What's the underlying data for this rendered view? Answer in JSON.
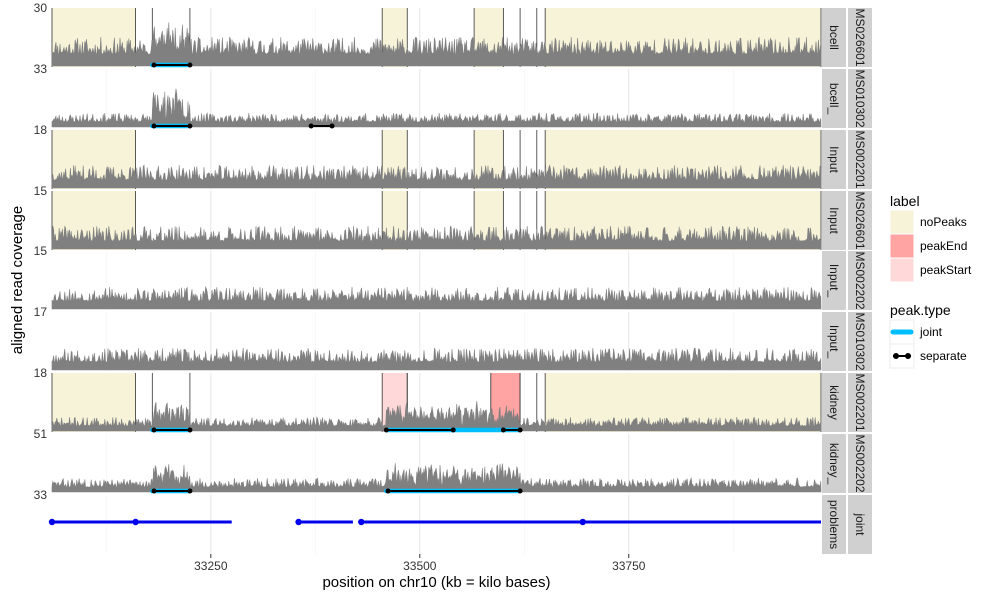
{
  "chart_data": {
    "type": "line",
    "xlabel": "position on chr10 (kb = kilo bases)",
    "ylabel": "aligned read coverage",
    "xlim": [
      33060,
      33980
    ],
    "x_ticks": [
      {
        "value": 33250,
        "label": "33250"
      },
      {
        "value": 33500,
        "label": "33500"
      },
      {
        "value": 33750,
        "label": "33750"
      }
    ],
    "colors": {
      "coverage": "#808080",
      "noPeaks": "#f6f3d9",
      "peakEnd": "#ffa3a3",
      "peakStart": "#ffd9d9",
      "joint": "#00bfff",
      "separate": "#000000",
      "problems": "#0000ee",
      "strip": "#d0d0d0"
    },
    "legend": {
      "placement": "right",
      "label_title": "label",
      "label_items": [
        {
          "key": "noPeaks",
          "text": "noPeaks"
        },
        {
          "key": "peakEnd",
          "text": "peakEnd"
        },
        {
          "key": "peakStart",
          "text": "peakStart"
        }
      ],
      "peak_title": "peak.type",
      "peak_items": [
        {
          "key": "joint",
          "text": "joint"
        },
        {
          "key": "separate",
          "text": "separate"
        }
      ]
    },
    "panels": [
      {
        "id": "p1",
        "strip1": "bcell",
        "strip2": "MS026601",
        "ytick": "30",
        "base": 12,
        "noise": 17,
        "seed": 11,
        "bumps": [
          {
            "from": 33180,
            "to": 33225,
            "add": 18
          }
        ],
        "regions": [
          {
            "from": 33060,
            "to": 33160,
            "label": "noPeaks"
          },
          {
            "from": 33180,
            "to": 33225,
            "label": "none"
          },
          {
            "from": 33455,
            "to": 33485,
            "label": "noPeaks"
          },
          {
            "from": 33565,
            "to": 33600,
            "label": "noPeaks"
          },
          {
            "from": 33620,
            "to": 33640,
            "label": "none"
          },
          {
            "from": 33650,
            "to": 33980,
            "label": "noPeaks"
          }
        ],
        "peaks": [
          {
            "from": 33180,
            "to": 33225,
            "type": "joint"
          },
          {
            "from": 33182,
            "to": 33225,
            "type": "separate"
          }
        ]
      },
      {
        "id": "p2",
        "strip1": "bcell_",
        "strip2": "MS010302",
        "ytick": "33",
        "base": 5,
        "noise": 9,
        "seed": 23,
        "bumps": [
          {
            "from": 33180,
            "to": 33225,
            "add": 26
          }
        ],
        "regions": [],
        "peaks": [
          {
            "from": 33180,
            "to": 33225,
            "type": "joint"
          },
          {
            "from": 33182,
            "to": 33225,
            "type": "separate"
          },
          {
            "from": 33370,
            "to": 33395,
            "type": "separate"
          }
        ]
      },
      {
        "id": "p3",
        "strip1": "Input",
        "strip2": "MS002201",
        "ytick": "18",
        "base": 8,
        "noise": 15,
        "seed": 37,
        "bumps": [],
        "regions": [
          {
            "from": 33060,
            "to": 33160,
            "label": "noPeaks"
          },
          {
            "from": 33455,
            "to": 33485,
            "label": "noPeaks"
          },
          {
            "from": 33565,
            "to": 33600,
            "label": "noPeaks"
          },
          {
            "from": 33620,
            "to": 33640,
            "label": "none"
          },
          {
            "from": 33650,
            "to": 33980,
            "label": "noPeaks"
          }
        ],
        "peaks": []
      },
      {
        "id": "p4",
        "strip1": "Input",
        "strip2": "MS026601",
        "ytick": "15",
        "base": 8,
        "noise": 15,
        "seed": 41,
        "bumps": [],
        "regions": [
          {
            "from": 33060,
            "to": 33160,
            "label": "noPeaks"
          },
          {
            "from": 33455,
            "to": 33485,
            "label": "noPeaks"
          },
          {
            "from": 33565,
            "to": 33600,
            "label": "noPeaks"
          },
          {
            "from": 33620,
            "to": 33640,
            "label": "none"
          },
          {
            "from": 33650,
            "to": 33980,
            "label": "noPeaks"
          }
        ],
        "peaks": []
      },
      {
        "id": "p5",
        "strip1": "Input_",
        "strip2": "MS002202",
        "ytick": "15",
        "base": 8,
        "noise": 14,
        "seed": 53,
        "bumps": [],
        "regions": [],
        "peaks": []
      },
      {
        "id": "p6",
        "strip1": "Input_",
        "strip2": "MS010302",
        "ytick": "17",
        "base": 8,
        "noise": 14,
        "seed": 67,
        "bumps": [],
        "regions": [],
        "peaks": []
      },
      {
        "id": "p7",
        "strip1": "kidney",
        "strip2": "MS002201",
        "ytick": "18",
        "base": 5,
        "noise": 9,
        "seed": 71,
        "bumps": [
          {
            "from": 33180,
            "to": 33225,
            "add": 18
          },
          {
            "from": 33460,
            "to": 33620,
            "add": 16
          }
        ],
        "regions": [
          {
            "from": 33060,
            "to": 33160,
            "label": "noPeaks"
          },
          {
            "from": 33180,
            "to": 33225,
            "label": "none"
          },
          {
            "from": 33455,
            "to": 33485,
            "label": "peakStart"
          },
          {
            "from": 33485,
            "to": 33585,
            "label": "none"
          },
          {
            "from": 33585,
            "to": 33620,
            "label": "peakEnd"
          },
          {
            "from": 33620,
            "to": 33640,
            "label": "none"
          },
          {
            "from": 33650,
            "to": 33980,
            "label": "noPeaks"
          }
        ],
        "peaks": [
          {
            "from": 33180,
            "to": 33225,
            "type": "joint"
          },
          {
            "from": 33182,
            "to": 33225,
            "type": "separate"
          },
          {
            "from": 33460,
            "to": 33620,
            "type": "joint"
          },
          {
            "from": 33460,
            "to": 33540,
            "type": "separate"
          },
          {
            "from": 33600,
            "to": 33620,
            "type": "separate"
          }
        ]
      },
      {
        "id": "p8",
        "strip1": "kidney_",
        "strip2": "MS002202",
        "ytick": "51",
        "base": 5,
        "noise": 9,
        "seed": 83,
        "bumps": [
          {
            "from": 33180,
            "to": 33225,
            "add": 18
          },
          {
            "from": 33460,
            "to": 33620,
            "add": 17
          }
        ],
        "regions": [],
        "peaks": [
          {
            "from": 33180,
            "to": 33225,
            "type": "joint"
          },
          {
            "from": 33182,
            "to": 33225,
            "type": "separate"
          },
          {
            "from": 33460,
            "to": 33620,
            "type": "joint"
          },
          {
            "from": 33462,
            "to": 33620,
            "type": "separate"
          }
        ]
      }
    ],
    "problems_panel": {
      "strip1": "problems",
      "strip2": "joint",
      "ytick": "33",
      "segments": [
        {
          "from": 33060,
          "to": 33275
        },
        {
          "from": 33355,
          "to": 33420
        },
        {
          "from": 33430,
          "to": 33980
        }
      ],
      "points": [
        33060,
        33160,
        33355,
        33430,
        33695
      ]
    }
  }
}
